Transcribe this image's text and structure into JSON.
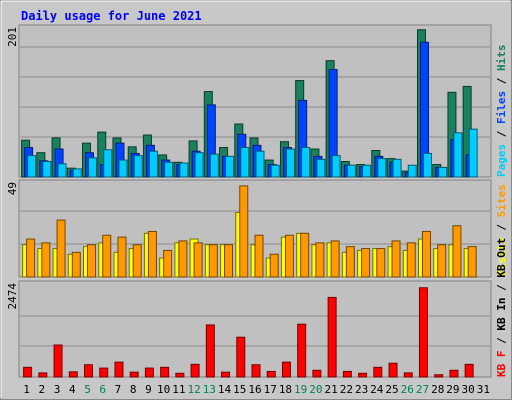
{
  "chart_data": {
    "type": "bar",
    "title": "Daily usage for June 2021",
    "categories": [
      "1",
      "2",
      "3",
      "4",
      "5",
      "6",
      "7",
      "8",
      "9",
      "10",
      "11",
      "12",
      "13",
      "14",
      "15",
      "16",
      "17",
      "18",
      "19",
      "20",
      "21",
      "22",
      "23",
      "24",
      "25",
      "26",
      "27",
      "28",
      "29",
      "30",
      "31"
    ],
    "weekend_days": [
      "5",
      "6",
      "12",
      "13",
      "19",
      "20",
      "26",
      "27"
    ],
    "panels": [
      {
        "id": "hits",
        "ymax": 201,
        "ymax_label": "201",
        "legend": [
          "Pages",
          "Files",
          "Hits"
        ],
        "series": [
          {
            "name": "Hits",
            "color": "#1a8060",
            "values": [
              50,
              33,
              53,
              12,
              46,
              61,
              53,
              41,
              57,
              30,
              20,
              49,
              116,
              40,
              72,
              53,
              23,
              48,
              131,
              38,
              158,
              21,
              17,
              36,
              25,
              8,
              200,
              17,
              115,
              123,
              0
            ]
          },
          {
            "name": "Files",
            "color": "#0044ff",
            "values": [
              40,
              22,
              38,
              9,
              33,
              17,
              46,
              32,
              43,
              23,
              17,
              35,
              98,
              28,
              58,
              43,
              17,
              40,
              104,
              28,
              146,
              16,
              14,
              28,
              20,
              6,
              183,
              13,
              51,
              30,
              0
            ]
          },
          {
            "name": "Pages",
            "color": "#00ccff",
            "values": [
              29,
              21,
              18,
              11,
              26,
              37,
              23,
              29,
              35,
              20,
              19,
              33,
              31,
              28,
              40,
              35,
              16,
              38,
              40,
              24,
              29,
              16,
              16,
              25,
              24,
              16,
              32,
              13,
              60,
              65,
              0
            ]
          }
        ]
      },
      {
        "id": "visits",
        "ymax": 49,
        "ymax_label": "49",
        "legend": [
          "Visits",
          "Sites"
        ],
        "series": [
          {
            "name": "Visits",
            "color": "#ffff00",
            "values": [
              17,
              15,
              15,
              12,
              16,
              18,
              13,
              15,
              23,
              10,
              18,
              20,
              17,
              17,
              34,
              17,
              10,
              21,
              23,
              17,
              18,
              13,
              14,
              15,
              16,
              14,
              20,
              15,
              17,
              15,
              0
            ]
          },
          {
            "name": "Sites",
            "color": "#ff9900",
            "values": [
              20,
              18,
              30,
              13,
              17,
              22,
              21,
              17,
              24,
              14,
              19,
              18,
              17,
              17,
              48,
              22,
              12,
              22,
              23,
              18,
              19,
              16,
              15,
              15,
              19,
              18,
              24,
              17,
              27,
              16,
              0
            ]
          }
        ]
      },
      {
        "id": "kbytes",
        "ymax": 2474,
        "ymax_label": "2474",
        "legend": [
          "KB F",
          "KB In",
          "KB Out"
        ],
        "series": [
          {
            "name": "KB F",
            "color": "#ff0000",
            "values": [
              260,
              110,
              860,
              140,
              330,
              240,
              400,
              130,
              240,
              260,
              100,
              340,
              1400,
              130,
              1070,
              330,
              150,
              400,
              1420,
              180,
              2140,
              150,
              100,
              260,
              370,
              110,
              2400,
              60,
              180,
              340,
              0
            ]
          }
        ]
      }
    ]
  }
}
